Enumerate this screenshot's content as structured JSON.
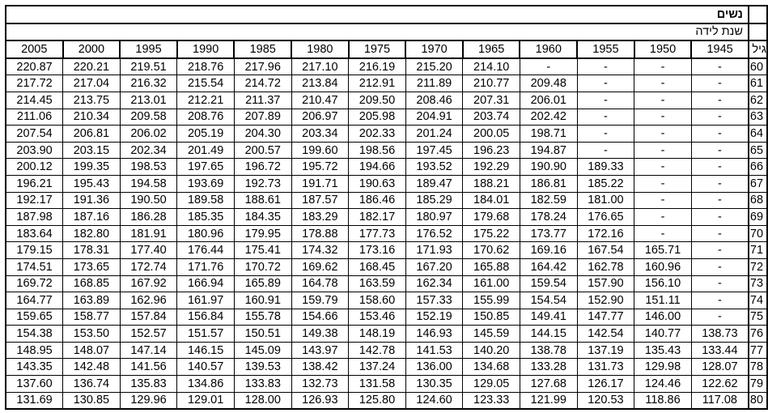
{
  "title": "נשים",
  "subtitle": "שנת לידה",
  "age_header": "גיל",
  "years": [
    "2005",
    "2000",
    "1995",
    "1990",
    "1985",
    "1980",
    "1975",
    "1970",
    "1965",
    "1960",
    "1955",
    "1950",
    "1945"
  ],
  "rows": [
    {
      "age": "60",
      "values": [
        "220.87",
        "220.21",
        "219.51",
        "218.76",
        "217.96",
        "217.10",
        "216.19",
        "215.20",
        "214.10",
        "-",
        "-",
        "-",
        "-"
      ]
    },
    {
      "age": "61",
      "values": [
        "217.72",
        "217.04",
        "216.32",
        "215.54",
        "214.72",
        "213.84",
        "212.91",
        "211.89",
        "210.77",
        "209.48",
        "-",
        "-",
        "-"
      ]
    },
    {
      "age": "62",
      "values": [
        "214.45",
        "213.75",
        "213.01",
        "212.21",
        "211.37",
        "210.47",
        "209.50",
        "208.46",
        "207.31",
        "206.01",
        "-",
        "-",
        "-"
      ]
    },
    {
      "age": "63",
      "values": [
        "211.06",
        "210.34",
        "209.58",
        "208.76",
        "207.89",
        "206.97",
        "205.98",
        "204.91",
        "203.74",
        "202.42",
        "-",
        "-",
        "-"
      ]
    },
    {
      "age": "64",
      "values": [
        "207.54",
        "206.81",
        "206.02",
        "205.19",
        "204.30",
        "203.34",
        "202.33",
        "201.24",
        "200.05",
        "198.71",
        "-",
        "-",
        "-"
      ]
    },
    {
      "age": "65",
      "values": [
        "203.90",
        "203.15",
        "202.34",
        "201.49",
        "200.57",
        "199.60",
        "198.56",
        "197.45",
        "196.23",
        "194.87",
        "-",
        "-",
        "-"
      ]
    },
    {
      "age": "66",
      "values": [
        "200.12",
        "199.35",
        "198.53",
        "197.65",
        "196.72",
        "195.72",
        "194.66",
        "193.52",
        "192.29",
        "190.90",
        "189.33",
        "-",
        "-"
      ]
    },
    {
      "age": "67",
      "values": [
        "196.21",
        "195.43",
        "194.58",
        "193.69",
        "192.73",
        "191.71",
        "190.63",
        "189.47",
        "188.21",
        "186.81",
        "185.22",
        "-",
        "-"
      ]
    },
    {
      "age": "68",
      "values": [
        "192.17",
        "191.36",
        "190.50",
        "189.58",
        "188.61",
        "187.57",
        "186.46",
        "185.29",
        "184.01",
        "182.59",
        "181.00",
        "-",
        "-"
      ]
    },
    {
      "age": "69",
      "values": [
        "187.98",
        "187.16",
        "186.28",
        "185.35",
        "184.35",
        "183.29",
        "182.17",
        "180.97",
        "179.68",
        "178.24",
        "176.65",
        "-",
        "-"
      ]
    },
    {
      "age": "70",
      "values": [
        "183.64",
        "182.80",
        "181.91",
        "180.96",
        "179.95",
        "178.88",
        "177.73",
        "176.52",
        "175.22",
        "173.77",
        "172.16",
        "-",
        "-"
      ]
    },
    {
      "age": "71",
      "values": [
        "179.15",
        "178.31",
        "177.40",
        "176.44",
        "175.41",
        "174.32",
        "173.16",
        "171.93",
        "170.62",
        "169.16",
        "167.54",
        "165.71",
        "-"
      ]
    },
    {
      "age": "72",
      "values": [
        "174.51",
        "173.65",
        "172.74",
        "171.76",
        "170.72",
        "169.62",
        "168.45",
        "167.20",
        "165.88",
        "164.42",
        "162.78",
        "160.96",
        "-"
      ]
    },
    {
      "age": "73",
      "values": [
        "169.72",
        "168.85",
        "167.92",
        "166.94",
        "165.89",
        "164.78",
        "163.59",
        "162.34",
        "161.00",
        "159.54",
        "157.90",
        "156.10",
        "-"
      ]
    },
    {
      "age": "74",
      "values": [
        "164.77",
        "163.89",
        "162.96",
        "161.97",
        "160.91",
        "159.79",
        "158.60",
        "157.33",
        "155.99",
        "154.54",
        "152.90",
        "151.11",
        "-"
      ]
    },
    {
      "age": "75",
      "values": [
        "159.65",
        "158.77",
        "157.84",
        "156.84",
        "155.78",
        "154.66",
        "153.46",
        "152.19",
        "150.85",
        "149.41",
        "147.77",
        "146.00",
        "-"
      ]
    },
    {
      "age": "76",
      "values": [
        "154.38",
        "153.50",
        "152.57",
        "151.57",
        "150.51",
        "149.38",
        "148.19",
        "146.93",
        "145.59",
        "144.15",
        "142.54",
        "140.77",
        "138.73"
      ]
    },
    {
      "age": "77",
      "values": [
        "148.95",
        "148.07",
        "147.14",
        "146.15",
        "145.09",
        "143.97",
        "142.78",
        "141.53",
        "140.20",
        "138.78",
        "137.19",
        "135.43",
        "133.44"
      ]
    },
    {
      "age": "78",
      "values": [
        "143.35",
        "142.48",
        "141.56",
        "140.57",
        "139.53",
        "138.42",
        "137.24",
        "136.00",
        "134.68",
        "133.28",
        "131.73",
        "129.98",
        "128.07"
      ]
    },
    {
      "age": "79",
      "values": [
        "137.60",
        "136.74",
        "135.83",
        "134.86",
        "133.83",
        "132.73",
        "131.58",
        "130.35",
        "129.05",
        "127.68",
        "126.17",
        "124.46",
        "122.62"
      ]
    },
    {
      "age": "80",
      "values": [
        "131.69",
        "130.85",
        "129.96",
        "129.01",
        "128.00",
        "126.93",
        "125.80",
        "124.60",
        "123.33",
        "121.99",
        "120.53",
        "118.86",
        "117.08"
      ]
    }
  ]
}
